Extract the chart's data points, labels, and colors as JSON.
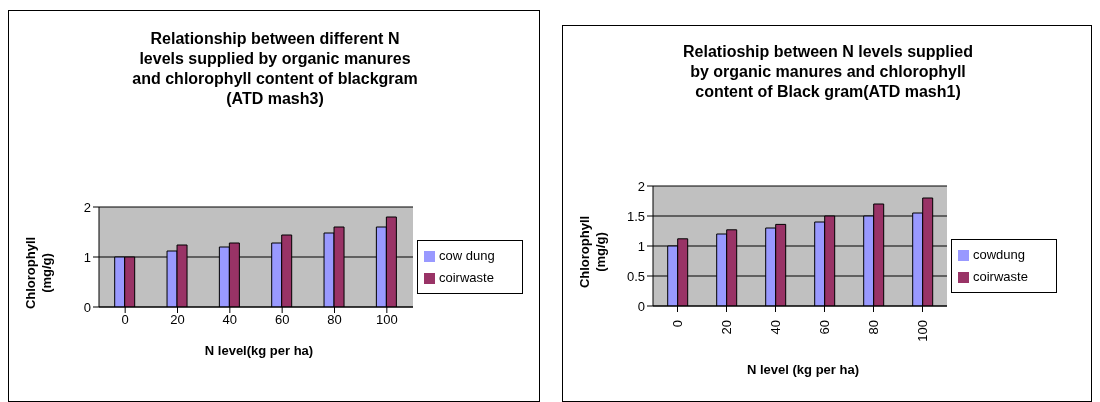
{
  "chart_data": [
    {
      "type": "bar",
      "title": "Relationship between different N levels supplied by organic manures and chlorophyll content of blackgram (ATD mash3)",
      "xlabel": "N level(kg per ha)",
      "ylabel": "Chlorophyll (mg/g)",
      "categories": [
        "0",
        "20",
        "40",
        "60",
        "80",
        "100"
      ],
      "series": [
        {
          "name": "cow dung",
          "color": "#9999ff",
          "values": [
            1.0,
            1.12,
            1.2,
            1.28,
            1.48,
            1.6
          ]
        },
        {
          "name": "coirwaste",
          "color": "#993366",
          "values": [
            1.0,
            1.24,
            1.28,
            1.44,
            1.6,
            1.8
          ]
        }
      ],
      "ylim": [
        0,
        2
      ],
      "yticks": [
        0,
        1,
        2
      ],
      "grid": "y",
      "legend": "right"
    },
    {
      "type": "bar",
      "title": "Relatioship between N levels supplied by organic manures and chlorophyll content of Black gram(ATD mash1)",
      "xlabel": "N level (kg per ha)",
      "ylabel": "Chlorophyll (mg/g)",
      "categories": [
        "0",
        "20",
        "40",
        "60",
        "80",
        "100"
      ],
      "series": [
        {
          "name": "cowdung",
          "color": "#9999ff",
          "values": [
            1.0,
            1.2,
            1.3,
            1.4,
            1.5,
            1.55
          ]
        },
        {
          "name": "coirwaste",
          "color": "#993366",
          "values": [
            1.12,
            1.27,
            1.36,
            1.5,
            1.7,
            1.8
          ]
        }
      ],
      "ylim": [
        0,
        2
      ],
      "yticks": [
        0,
        0.5,
        1,
        1.5,
        2
      ],
      "grid": "y",
      "legend": "right"
    }
  ]
}
